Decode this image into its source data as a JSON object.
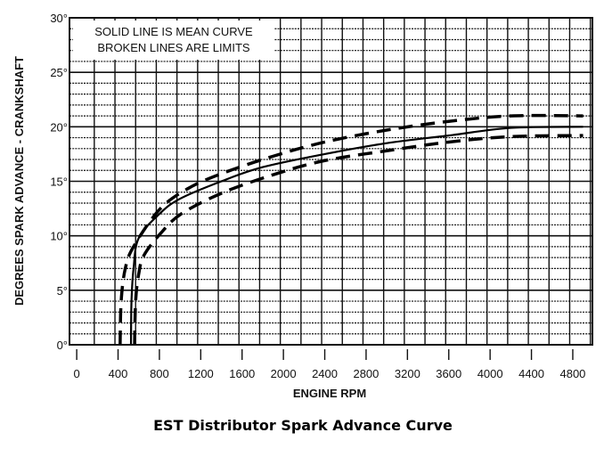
{
  "chart_data": {
    "type": "line",
    "title": "EST Distributor Spark Advance Curve",
    "xlabel": "ENGINE RPM",
    "ylabel": "DEGREES SPARK ADVANCE - CRANKSHAFT",
    "xlim": [
      -70,
      4990
    ],
    "ylim": [
      0,
      30
    ],
    "x_ticks": [
      0,
      400,
      800,
      1200,
      1600,
      2000,
      2400,
      2800,
      3200,
      3600,
      4000,
      4400,
      4800
    ],
    "x_tick_labels": [
      "0",
      "400",
      "800",
      "1200",
      "1600",
      "2000",
      "2400",
      "2800",
      "3200",
      "3600",
      "4000",
      "4400",
      "4800"
    ],
    "y_ticks": [
      0,
      5,
      10,
      15,
      20,
      25,
      30
    ],
    "y_tick_labels": [
      "0°",
      "5°",
      "10°",
      "15°",
      "20°",
      "25°",
      "30°"
    ],
    "grid": true,
    "legend_placement": "top-left",
    "annotation": [
      "SOLID LINE IS MEAN CURVE",
      "BROKEN LINES ARE LIMITS"
    ],
    "colors": {
      "line": "#000000",
      "grid": "#111111",
      "background": "#ffffff"
    },
    "series": [
      {
        "style": "solid",
        "points": [
          [
            525,
            0
          ],
          [
            530,
            4
          ],
          [
            550,
            7
          ],
          [
            600,
            9.8
          ],
          [
            800,
            12
          ],
          [
            1000,
            13.4
          ],
          [
            1400,
            15
          ],
          [
            1800,
            16.3
          ],
          [
            2400,
            17.5
          ],
          [
            3000,
            18.5
          ],
          [
            3600,
            19.2
          ],
          [
            4200,
            19.9
          ],
          [
            4900,
            20
          ]
        ]
      },
      {
        "style": "dashed",
        "points": [
          [
            420,
            0
          ],
          [
            430,
            4
          ],
          [
            470,
            7
          ],
          [
            550,
            9
          ],
          [
            800,
            12.4
          ],
          [
            1070,
            14.3
          ],
          [
            1400,
            15.7
          ],
          [
            1900,
            17.3
          ],
          [
            2400,
            18.6
          ],
          [
            3000,
            19.7
          ],
          [
            3600,
            20.5
          ],
          [
            4200,
            21
          ],
          [
            4900,
            21
          ]
        ]
      },
      {
        "style": "dashed",
        "points": [
          [
            560,
            0
          ],
          [
            570,
            4
          ],
          [
            600,
            6.5
          ],
          [
            650,
            8.2
          ],
          [
            810,
            10.2
          ],
          [
            1010,
            12
          ],
          [
            1400,
            13.9
          ],
          [
            1900,
            15.6
          ],
          [
            2400,
            16.9
          ],
          [
            3000,
            17.8
          ],
          [
            3600,
            18.6
          ],
          [
            4200,
            19.1
          ],
          [
            4900,
            19.2
          ]
        ]
      }
    ]
  }
}
